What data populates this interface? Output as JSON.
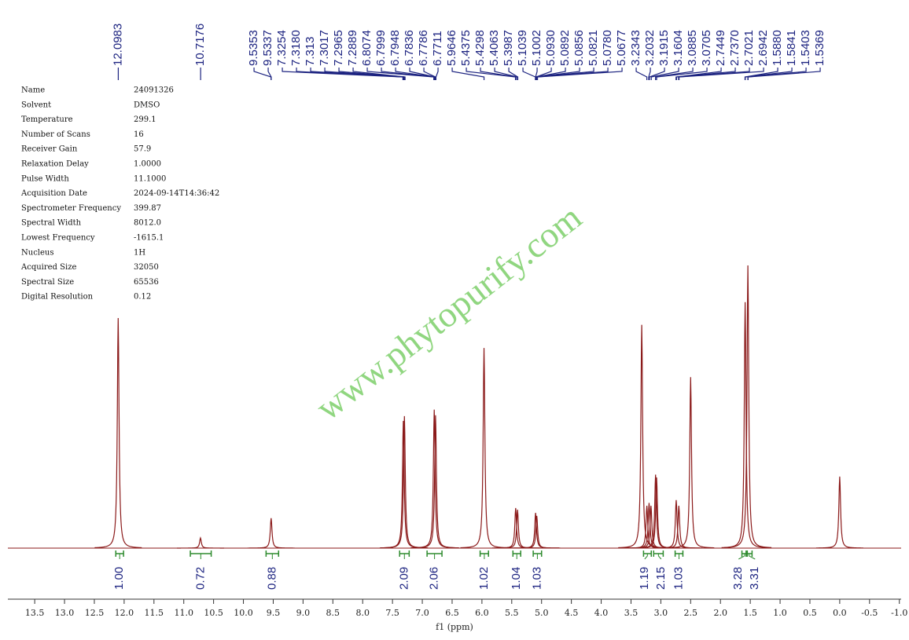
{
  "chart_data": {
    "type": "nmr",
    "xlabel": "f1 (ppm)",
    "watermark": "www.phytopurify.com",
    "xlim": [
      13.95,
      -1.03
    ],
    "ylim": [
      0,
      100
    ],
    "xticks": [
      13.5,
      {
        "value": 13,
        "label": "13.0"
      },
      12.5,
      {
        "value": 12,
        "label": "12.0"
      },
      11.5,
      {
        "value": 11,
        "label": "11.0"
      },
      10.5,
      {
        "value": 10,
        "label": "10.0"
      },
      9.5,
      {
        "value": 9,
        "label": "9.0"
      },
      8.5,
      {
        "value": 8,
        "label": "8.0"
      },
      7.5,
      {
        "value": 7,
        "label": "7.0"
      },
      6.5,
      {
        "value": 6,
        "label": "6.0"
      },
      5.5,
      {
        "value": 5,
        "label": "5.0"
      },
      4.5,
      {
        "value": 4,
        "label": "4.0"
      },
      3.5,
      {
        "value": 3,
        "label": "3.0"
      },
      2.5,
      {
        "value": 2,
        "label": "2.0"
      },
      1.5,
      {
        "value": 1,
        "label": "1.0"
      },
      0.5,
      {
        "value": 0,
        "label": "0.0"
      },
      -0.5,
      {
        "value": -1,
        "label": "-1.0"
      }
    ],
    "line_color": "#8b1a1a",
    "label_color": "#1c2380",
    "integral_color": "#2e8b2e",
    "peaks": [
      {
        "ppm": 12.1,
        "intensity": 81.4
      },
      {
        "ppm": 10.72,
        "intensity": 3.6
      },
      {
        "ppm": 9.535,
        "intensity": 10.6
      },
      {
        "ppm": 7.318,
        "intensity": 45
      },
      {
        "ppm": 7.3,
        "intensity": 46.7
      },
      {
        "ppm": 6.8,
        "intensity": 49
      },
      {
        "ppm": 6.778,
        "intensity": 47
      },
      {
        "ppm": 5.965,
        "intensity": 70.8
      },
      {
        "ppm": 5.434,
        "intensity": 14.2
      },
      {
        "ppm": 5.403,
        "intensity": 13.6
      },
      {
        "ppm": 5.1,
        "intensity": 12.5
      },
      {
        "ppm": 5.08,
        "intensity": 11.4
      },
      {
        "ppm": 3.32,
        "intensity": 79
      },
      {
        "ppm": 3.234,
        "intensity": 15
      },
      {
        "ppm": 3.197,
        "intensity": 16
      },
      {
        "ppm": 3.165,
        "intensity": 15
      },
      {
        "ppm": 3.088,
        "intensity": 26
      },
      {
        "ppm": 3.071,
        "intensity": 25
      },
      {
        "ppm": 2.742,
        "intensity": 17
      },
      {
        "ppm": 2.698,
        "intensity": 15
      },
      {
        "ppm": 2.5,
        "intensity": 60.5
      },
      {
        "ppm": 1.586,
        "intensity": 87
      },
      {
        "ppm": 1.54,
        "intensity": 100
      },
      {
        "ppm": 0,
        "intensity": 25.3
      }
    ],
    "peak_labels": [
      12.0983,
      10.7176,
      9.5353,
      9.5337,
      7.3254,
      {
        "value": 7.318,
        "label": "7.3180"
      },
      7.313,
      7.3017,
      7.2965,
      7.2889,
      6.8074,
      6.7999,
      6.7948,
      6.7836,
      6.7786,
      6.7711,
      5.9646,
      5.4375,
      5.4298,
      5.4063,
      5.3987,
      5.1039,
      5.1002,
      {
        "value": 5.093,
        "label": "5.0930"
      },
      5.0892,
      5.0856,
      5.0821,
      {
        "value": 5.078,
        "label": "5.0780"
      },
      5.0677,
      3.2343,
      3.2032,
      3.1915,
      3.1604,
      3.0885,
      3.0705,
      2.7449,
      {
        "value": 2.737,
        "label": "2.7370"
      },
      2.7021,
      2.6942,
      {
        "value": 1.588,
        "label": "1.5880"
      },
      1.5841,
      1.5403,
      1.5369
    ],
    "integrals": [
      {
        "value": 1,
        "label": "1.00",
        "from": 12.14,
        "to": 12.01
      },
      {
        "value": 0.72,
        "label": "0.72",
        "from": 10.89,
        "to": 10.54
      },
      {
        "value": 0.88,
        "label": "0.88",
        "from": 9.62,
        "to": 9.41
      },
      {
        "value": 2.09,
        "label": "2.09",
        "from": 7.38,
        "to": 7.22
      },
      {
        "value": 2.06,
        "label": "2.06",
        "from": 6.92,
        "to": 6.67
      },
      {
        "value": 1.02,
        "label": "1.02",
        "from": 6.03,
        "to": 5.89
      },
      {
        "value": 1.04,
        "label": "1.04",
        "from": 5.48,
        "to": 5.35
      },
      {
        "value": 1.03,
        "label": "1.03",
        "from": 5.14,
        "to": 5.0
      },
      {
        "value": 1.19,
        "label": "1.19",
        "from": 3.29,
        "to": 3.16
      },
      {
        "value": 2.15,
        "label": "2.15",
        "from": 3.12,
        "to": 2.96
      },
      {
        "value": 1.03,
        "label": "1.03",
        "from": 2.76,
        "to": 2.63
      },
      {
        "value": 3.28,
        "label": "3.28",
        "from": 1.64,
        "to": 1.55
      },
      {
        "value": 3.31,
        "label": "3.31",
        "from": 1.57,
        "to": 1.47
      }
    ],
    "parameters": [
      {
        "name": "Name",
        "value": "24091326"
      },
      {
        "name": "Solvent",
        "value": "DMSO"
      },
      {
        "name": "Temperature",
        "value": "299.1"
      },
      {
        "name": "Number of Scans",
        "value": "16"
      },
      {
        "name": "Receiver Gain",
        "value": "57.9"
      },
      {
        "name": "Relaxation Delay",
        "value": "1.0000"
      },
      {
        "name": "Pulse Width",
        "value": "11.1000"
      },
      {
        "name": "Acquisition Date",
        "value": "2024-09-14T14:36:42"
      },
      {
        "name": "Spectrometer Frequency",
        "value": "399.87"
      },
      {
        "name": "Spectral Width",
        "value": "8012.0"
      },
      {
        "name": "Lowest Frequency",
        "value": "-1615.1"
      },
      {
        "name": "Nucleus",
        "value": "1H"
      },
      {
        "name": "Acquired Size",
        "value": "32050"
      },
      {
        "name": "Spectral Size",
        "value": "65536"
      },
      {
        "name": "Digital Resolution",
        "value": "0.12"
      }
    ]
  }
}
